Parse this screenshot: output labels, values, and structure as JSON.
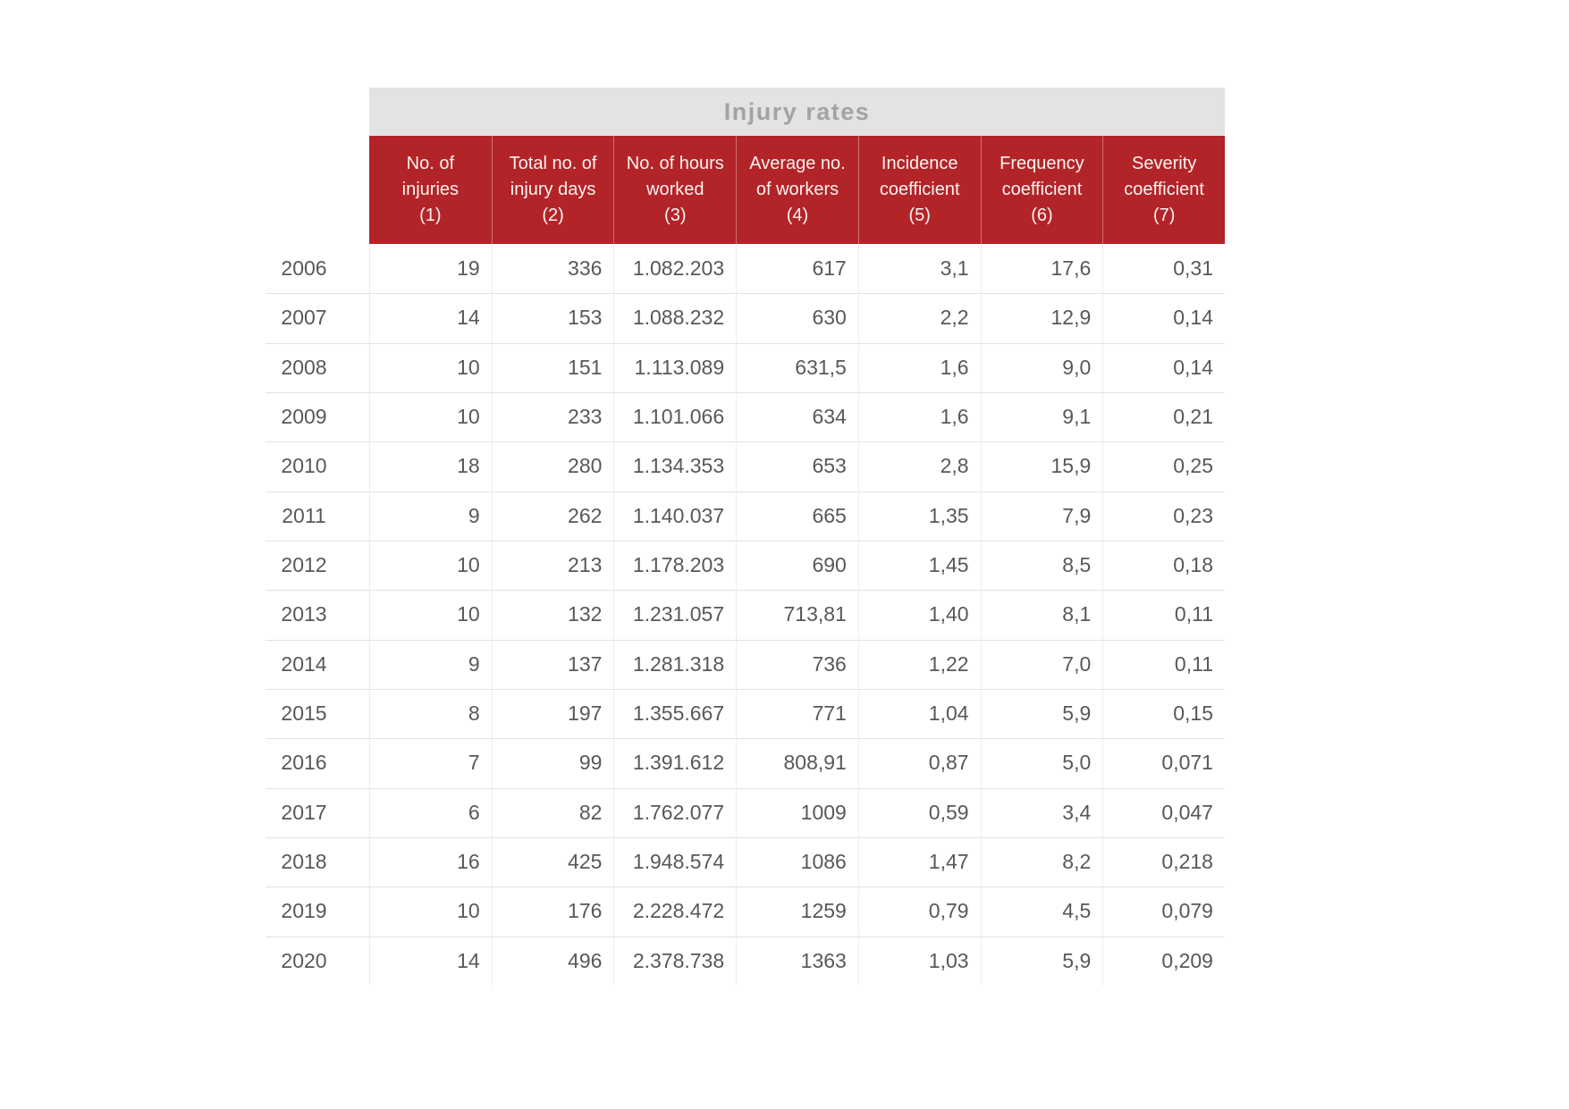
{
  "table": {
    "title": "Injury rates",
    "columns": [
      {
        "key": "injuries",
        "label": "No. of injuries (1)",
        "lines": [
          "No. of",
          "injuries",
          "(1)"
        ]
      },
      {
        "key": "injury-days",
        "label": "Total no. of injury days (2)",
        "lines": [
          "Total no. of",
          "injury days",
          "(2)"
        ]
      },
      {
        "key": "hours-worked",
        "label": "No. of hours worked (3)",
        "lines": [
          "No. of hours",
          "worked",
          "(3)"
        ]
      },
      {
        "key": "avg-workers",
        "label": "Average no. of workers (4)",
        "lines": [
          "Average no.",
          "of workers",
          "(4)"
        ]
      },
      {
        "key": "incidence",
        "label": "Incidence coefficient (5)",
        "lines": [
          "Incidence",
          "coefficient",
          "(5)"
        ]
      },
      {
        "key": "frequency",
        "label": "Frequency coefficient (6)",
        "lines": [
          "Frequency",
          "coefficient",
          "(6)"
        ]
      },
      {
        "key": "severity",
        "label": "Severity coefficient (7)",
        "lines": [
          "Severity",
          "coefficient",
          "(7)"
        ]
      }
    ],
    "rows": [
      {
        "year": "2006",
        "values": [
          "19",
          "336",
          "1.082.203",
          "617",
          "3,1",
          "17,6",
          "0,31"
        ]
      },
      {
        "year": "2007",
        "values": [
          "14",
          "153",
          "1.088.232",
          "630",
          "2,2",
          "12,9",
          "0,14"
        ]
      },
      {
        "year": "2008",
        "values": [
          "10",
          "151",
          "1.113.089",
          "631,5",
          "1,6",
          "9,0",
          "0,14"
        ]
      },
      {
        "year": "2009",
        "values": [
          "10",
          "233",
          "1.101.066",
          "634",
          "1,6",
          "9,1",
          "0,21"
        ]
      },
      {
        "year": "2010",
        "values": [
          "18",
          "280",
          "1.134.353",
          "653",
          "2,8",
          "15,9",
          "0,25"
        ]
      },
      {
        "year": "2011",
        "values": [
          "9",
          "262",
          "1.140.037",
          "665",
          "1,35",
          "7,9",
          "0,23"
        ]
      },
      {
        "year": "2012",
        "values": [
          "10",
          "213",
          "1.178.203",
          "690",
          "1,45",
          "8,5",
          "0,18"
        ]
      },
      {
        "year": "2013",
        "values": [
          "10",
          "132",
          "1.231.057",
          "713,81",
          "1,40",
          "8,1",
          "0,11"
        ]
      },
      {
        "year": "2014",
        "values": [
          "9",
          "137",
          "1.281.318",
          "736",
          "1,22",
          "7,0",
          "0,11"
        ]
      },
      {
        "year": "2015",
        "values": [
          "8",
          "197",
          "1.355.667",
          "771",
          "1,04",
          "5,9",
          "0,15"
        ]
      },
      {
        "year": "2016",
        "values": [
          "7",
          "99",
          "1.391.612",
          "808,91",
          "0,87",
          "5,0",
          "0,071"
        ]
      },
      {
        "year": "2017",
        "values": [
          "6",
          "82",
          "1.762.077",
          "1009",
          "0,59",
          "3,4",
          "0,047"
        ]
      },
      {
        "year": "2018",
        "values": [
          "16",
          "425",
          "1.948.574",
          "1086",
          "1,47",
          "8,2",
          "0,218"
        ]
      },
      {
        "year": "2019",
        "values": [
          "10",
          "176",
          "2.228.472",
          "1259",
          "0,79",
          "4,5",
          "0,079"
        ]
      },
      {
        "year": "2020",
        "values": [
          "14",
          "496",
          "2.378.738",
          "1363",
          "1,03",
          "5,9",
          "0,209"
        ]
      }
    ]
  },
  "chart_data": {
    "type": "table",
    "title": "Injury rates",
    "categories": [
      2006,
      2007,
      2008,
      2009,
      2010,
      2011,
      2012,
      2013,
      2014,
      2015,
      2016,
      2017,
      2018,
      2019,
      2020
    ],
    "series": [
      {
        "name": "No. of injuries (1)",
        "values": [
          19,
          14,
          10,
          10,
          18,
          9,
          10,
          10,
          9,
          8,
          7,
          6,
          16,
          10,
          14
        ]
      },
      {
        "name": "Total no. of injury days (2)",
        "values": [
          336,
          153,
          151,
          233,
          280,
          262,
          213,
          132,
          137,
          197,
          99,
          82,
          425,
          176,
          496
        ]
      },
      {
        "name": "No. of hours worked (3)",
        "values": [
          1082203,
          1088232,
          1113089,
          1101066,
          1134353,
          1140037,
          1178203,
          1231057,
          1281318,
          1355667,
          1391612,
          1762077,
          1948574,
          2228472,
          2378738
        ]
      },
      {
        "name": "Average no. of workers (4)",
        "values": [
          617,
          630,
          631.5,
          634,
          653,
          665,
          690,
          713.81,
          736,
          771,
          808.91,
          1009,
          1086,
          1259,
          1363
        ]
      },
      {
        "name": "Incidence coefficient (5)",
        "values": [
          3.1,
          2.2,
          1.6,
          1.6,
          2.8,
          1.35,
          1.45,
          1.4,
          1.22,
          1.04,
          0.87,
          0.59,
          1.47,
          0.79,
          1.03
        ]
      },
      {
        "name": "Frequency coefficient (6)",
        "values": [
          17.6,
          12.9,
          9.0,
          9.1,
          15.9,
          7.9,
          8.5,
          8.1,
          7.0,
          5.9,
          5.0,
          3.4,
          8.2,
          4.5,
          5.9
        ]
      },
      {
        "name": "Severity coefficient (7)",
        "values": [
          0.31,
          0.14,
          0.14,
          0.21,
          0.25,
          0.23,
          0.18,
          0.11,
          0.11,
          0.15,
          0.071,
          0.047,
          0.218,
          0.079,
          0.209
        ]
      }
    ],
    "decimal_separator": ",",
    "thousands_separator": "."
  },
  "colors": {
    "header_red": "#b32428",
    "title_bar_gray": "#e3e3e3",
    "title_text_gray": "#a3a3a3",
    "header_text": "#f8f3f0",
    "cell_text": "#58585a",
    "row_separator": "#e2e2e2",
    "column_separator": "#ededed"
  }
}
